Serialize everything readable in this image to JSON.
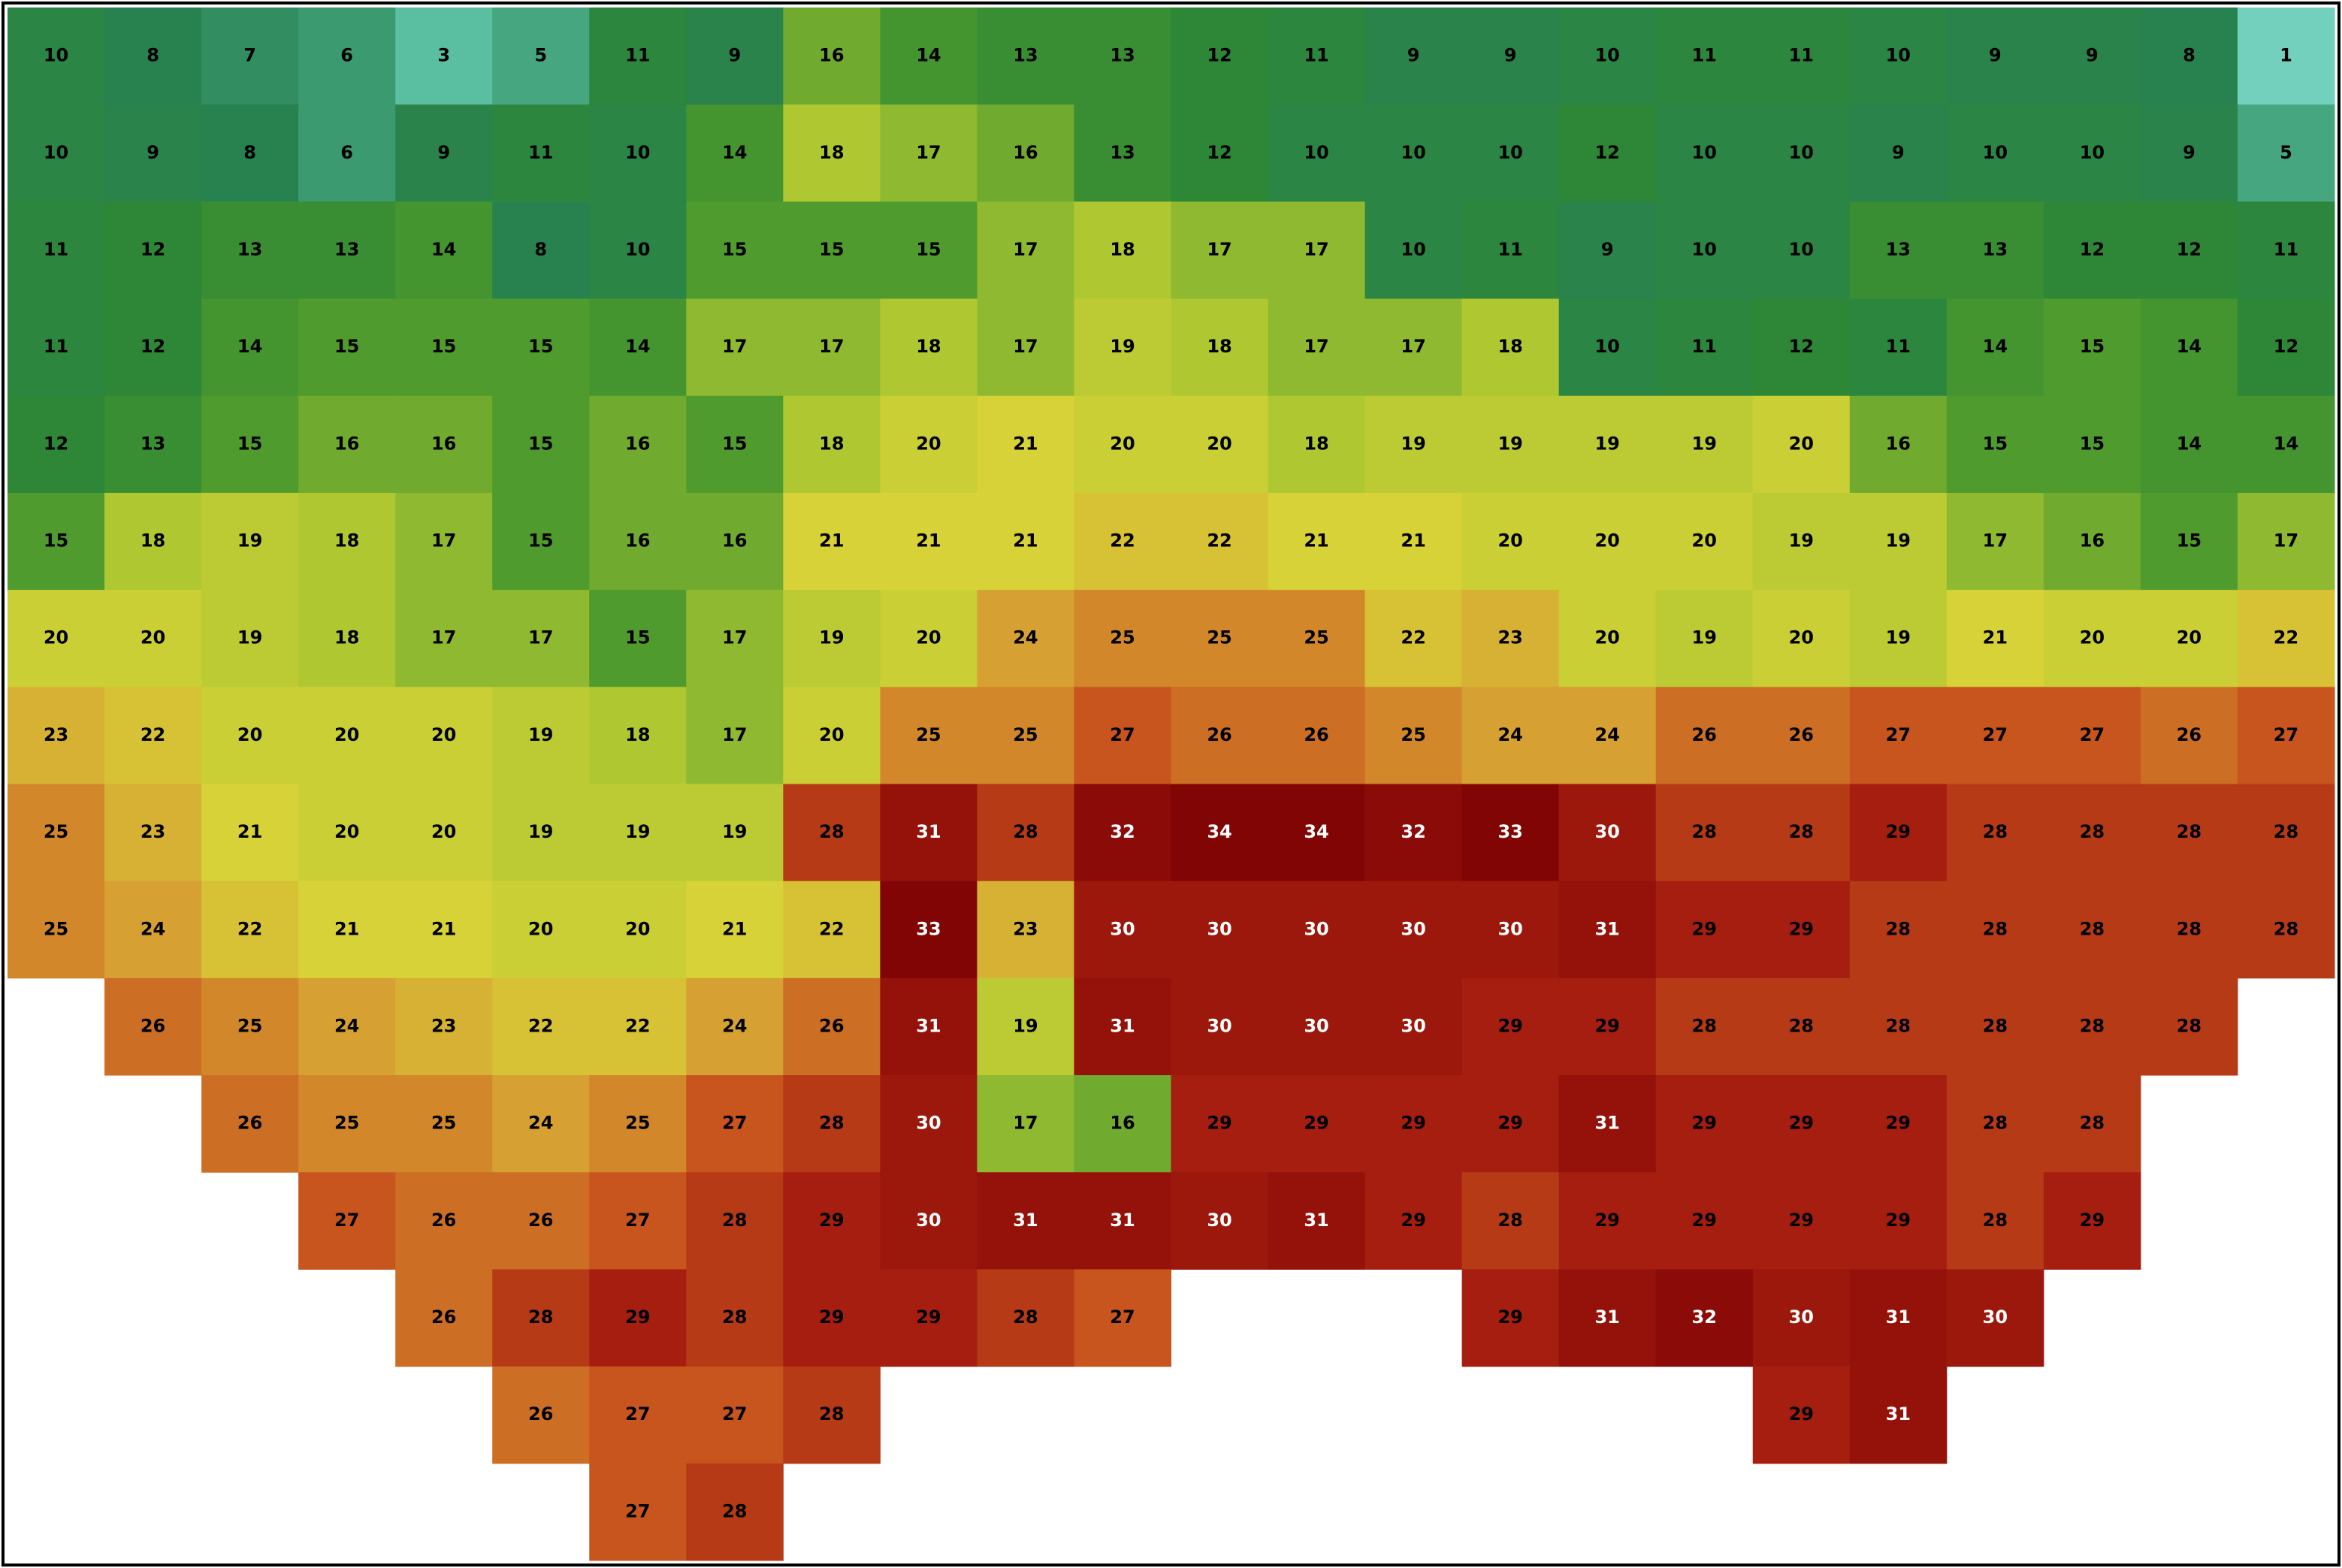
{
  "map": {
    "grid": [
      [
        10,
        8,
        7,
        6,
        3,
        5,
        11,
        9,
        16,
        14,
        13,
        13,
        12,
        11,
        9,
        9,
        10,
        11,
        11,
        10,
        9,
        9,
        8,
        1
      ],
      [
        10,
        9,
        8,
        6,
        9,
        11,
        10,
        14,
        18,
        17,
        16,
        13,
        12,
        10,
        10,
        10,
        12,
        10,
        10,
        9,
        10,
        10,
        9,
        5
      ],
      [
        11,
        12,
        13,
        13,
        14,
        8,
        10,
        15,
        15,
        15,
        17,
        18,
        17,
        17,
        10,
        11,
        9,
        10,
        10,
        13,
        13,
        12,
        12,
        11
      ],
      [
        11,
        12,
        14,
        15,
        15,
        15,
        14,
        17,
        17,
        18,
        17,
        19,
        18,
        17,
        17,
        18,
        10,
        11,
        12,
        11,
        14,
        15,
        14,
        12
      ],
      [
        12,
        13,
        15,
        16,
        16,
        15,
        16,
        15,
        18,
        20,
        21,
        20,
        20,
        18,
        19,
        19,
        19,
        19,
        20,
        16,
        15,
        15,
        14,
        14
      ],
      [
        15,
        18,
        19,
        18,
        17,
        15,
        16,
        16,
        21,
        21,
        21,
        22,
        22,
        21,
        21,
        20,
        20,
        20,
        19,
        19,
        17,
        16,
        15,
        17
      ],
      [
        20,
        20,
        19,
        18,
        17,
        17,
        15,
        17,
        19,
        20,
        24,
        25,
        25,
        25,
        22,
        23,
        20,
        19,
        20,
        19,
        21,
        20,
        20,
        22
      ],
      [
        23,
        22,
        20,
        20,
        20,
        19,
        18,
        17,
        20,
        25,
        25,
        27,
        26,
        26,
        25,
        24,
        24,
        26,
        26,
        27,
        27,
        27,
        26,
        27
      ],
      [
        25,
        23,
        21,
        20,
        20,
        19,
        19,
        19,
        28,
        31,
        28,
        32,
        34,
        34,
        32,
        33,
        30,
        28,
        28,
        29,
        28,
        28,
        28,
        28
      ],
      [
        25,
        24,
        22,
        21,
        21,
        20,
        20,
        21,
        22,
        33,
        23,
        30,
        30,
        30,
        30,
        30,
        31,
        29,
        29,
        28,
        28,
        28,
        28,
        28
      ],
      [
        null,
        26,
        25,
        24,
        23,
        22,
        22,
        24,
        26,
        31,
        19,
        31,
        30,
        30,
        30,
        29,
        29,
        28,
        28,
        28,
        28,
        28,
        28,
        null
      ],
      [
        null,
        null,
        26,
        25,
        25,
        24,
        25,
        27,
        28,
        30,
        17,
        16,
        29,
        29,
        29,
        29,
        31,
        29,
        29,
        29,
        28,
        28,
        null,
        null
      ],
      [
        null,
        null,
        null,
        27,
        26,
        26,
        27,
        28,
        29,
        30,
        31,
        31,
        30,
        31,
        29,
        28,
        29,
        29,
        29,
        29,
        28,
        29,
        null,
        null
      ],
      [
        null,
        null,
        null,
        null,
        26,
        28,
        29,
        28,
        29,
        29,
        28,
        27,
        null,
        null,
        null,
        29,
        31,
        32,
        30,
        31,
        30,
        null,
        null,
        null
      ],
      [
        null,
        null,
        null,
        null,
        null,
        26,
        27,
        27,
        28,
        null,
        null,
        null,
        null,
        null,
        null,
        null,
        null,
        null,
        29,
        31,
        null,
        null,
        null,
        null
      ],
      [
        null,
        null,
        null,
        null,
        null,
        null,
        27,
        28,
        null,
        null,
        null,
        null,
        null,
        null,
        null,
        null,
        null,
        null,
        null,
        null,
        null,
        null,
        null,
        null
      ]
    ]
  }
}
